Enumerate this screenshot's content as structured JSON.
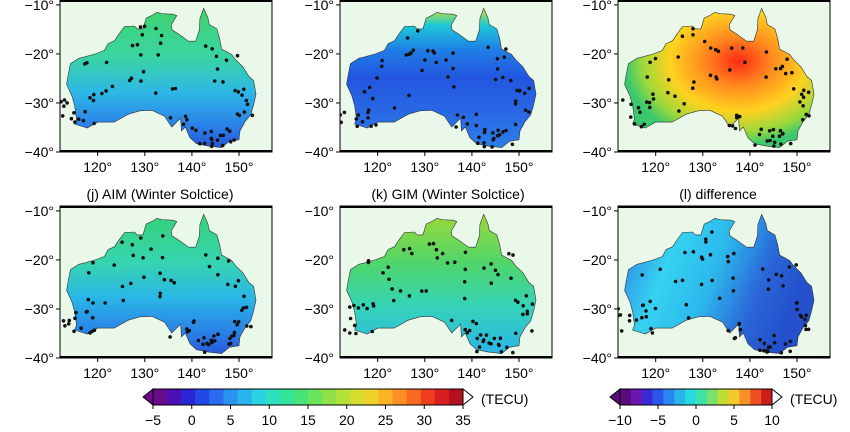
{
  "chart_data": {
    "type": "map",
    "axes": {
      "x_ticks": [
        "120°",
        "130°",
        "140°",
        "150°"
      ],
      "y_ticks": [
        "−10°",
        "−20°",
        "−30°",
        "−40°"
      ],
      "x_ticks_full": [
        "120°",
        "130°",
        "140°",
        "150°"
      ]
    },
    "panels": [
      {
        "id": "top-left",
        "title": "",
        "shading": "aim-summer",
        "show_x_labels": true,
        "show_y_labels": true
      },
      {
        "id": "top-middle",
        "title": "",
        "shading": "gim-summer",
        "show_x_labels": true,
        "show_y_labels": true
      },
      {
        "id": "top-right",
        "title": "",
        "shading": "diff-summer",
        "show_x_labels": true,
        "show_y_labels": true
      },
      {
        "id": "bottom-left",
        "title": "(j) AIM (Winter Solctice)",
        "shading": "aim-winter",
        "show_x_labels": true,
        "show_y_labels": true
      },
      {
        "id": "bottom-middle",
        "title": "(k) GIM (Winter Solctice)",
        "shading": "gim-winter",
        "show_x_labels": true,
        "show_y_labels": false
      },
      {
        "id": "bottom-right",
        "title": "(l) difference",
        "shading": "diff-winter",
        "show_x_labels": true,
        "show_y_labels": true
      }
    ],
    "colorbars": [
      {
        "id": "tec",
        "unit": "(TECU)",
        "ticks": [
          "−5",
          "0",
          "5",
          "10",
          "15",
          "20",
          "25",
          "30",
          "35"
        ],
        "range": [
          -5,
          35
        ]
      },
      {
        "id": "diff",
        "unit": "(TECU)",
        "ticks": [
          "−10",
          "−5",
          "0",
          "5",
          "10"
        ],
        "range": [
          -10,
          10
        ]
      }
    ],
    "colors": {
      "land_bg": "#eaf8ea",
      "station": "#111111"
    }
  }
}
